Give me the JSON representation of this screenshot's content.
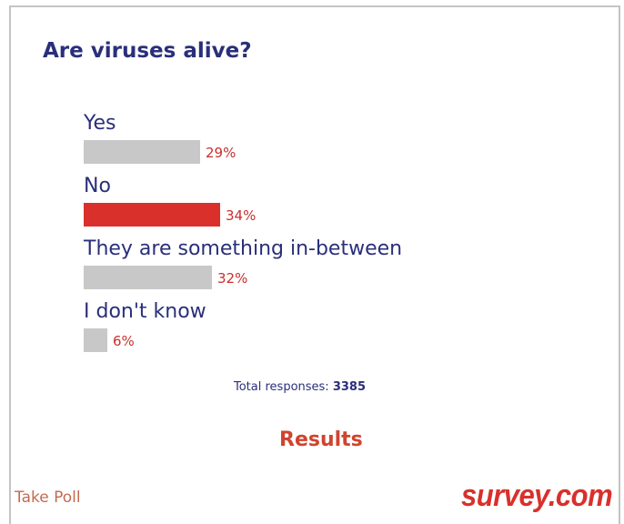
{
  "poll": {
    "question": "Are viruses alive?",
    "options": [
      {
        "label": "Yes",
        "percent_text": "29%",
        "percent": 29,
        "selected": false
      },
      {
        "label": "No",
        "percent_text": "34%",
        "percent": 34,
        "selected": true
      },
      {
        "label": "They are something in-between",
        "percent_text": "32%",
        "percent": 32,
        "selected": false
      },
      {
        "label": "I don't know",
        "percent_text": "6%",
        "percent": 6,
        "selected": false
      }
    ],
    "total_label": "Total responses:",
    "total_count": "3385",
    "results_label": "Results"
  },
  "footer": {
    "take_poll_label": "Take Poll",
    "brand": "survey.com"
  },
  "colors": {
    "question_text": "#2a2f7a",
    "bar_default": "#c8c8c8",
    "bar_selected": "#d9302c",
    "percent_text": "#c6302c",
    "brand": "#d9302c"
  }
}
